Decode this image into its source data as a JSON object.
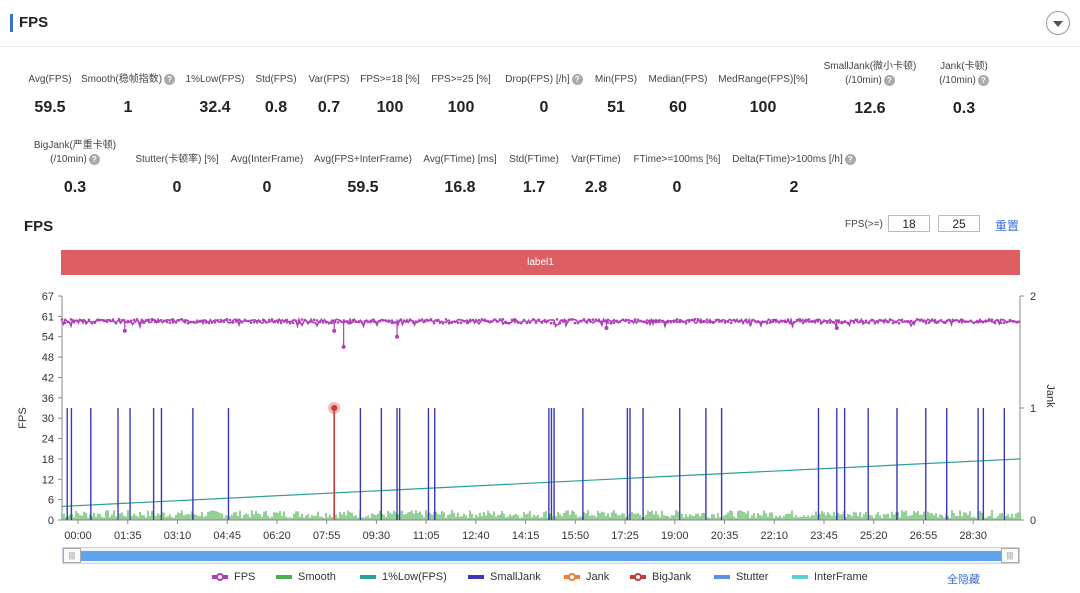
{
  "header": {
    "title": "FPS"
  },
  "metrics_row1": [
    {
      "label": "Avg(FPS)",
      "value": "59.5",
      "help": false
    },
    {
      "label": "Smooth(稳帧指数)",
      "value": "1",
      "help": true
    },
    {
      "label": "1%Low(FPS)",
      "value": "32.4",
      "help": false
    },
    {
      "label": "Std(FPS)",
      "value": "0.8",
      "help": false
    },
    {
      "label": "Var(FPS)",
      "value": "0.7",
      "help": false
    },
    {
      "label": "FPS>=18 [%]",
      "value": "100",
      "help": false
    },
    {
      "label": "FPS>=25 [%]",
      "value": "100",
      "help": false
    },
    {
      "label": "Drop(FPS) [/h]",
      "value": "0",
      "help": true
    },
    {
      "label": "Min(FPS)",
      "value": "51",
      "help": false
    },
    {
      "label": "Median(FPS)",
      "value": "60",
      "help": false
    },
    {
      "label": "MedRange(FPS)[%]",
      "value": "100",
      "help": false
    },
    {
      "label": "SmallJank(微小卡顿)",
      "label2": "(/10min)",
      "value": "12.6",
      "help": true
    },
    {
      "label": "Jank(卡顿)",
      "label2": "(/10min)",
      "value": "0.3",
      "help": true
    }
  ],
  "metrics_row2": [
    {
      "label": "BigJank(严重卡顿)",
      "label2": "(/10min)",
      "value": "0.3",
      "help": true
    },
    {
      "label": "Stutter(卡顿率) [%]",
      "value": "0",
      "help": false
    },
    {
      "label": "Avg(InterFrame)",
      "value": "0",
      "help": false
    },
    {
      "label": "Avg(FPS+InterFrame)",
      "value": "59.5",
      "help": false
    },
    {
      "label": "Avg(FTime) [ms]",
      "value": "16.8",
      "help": false
    },
    {
      "label": "Std(FTime)",
      "value": "1.7",
      "help": false
    },
    {
      "label": "Var(FTime)",
      "value": "2.8",
      "help": false
    },
    {
      "label": "FTime>=100ms [%]",
      "value": "0",
      "help": false
    },
    {
      "label": "Delta(FTime)>100ms [/h]",
      "value": "2",
      "help": true
    }
  ],
  "chart_panel": {
    "title": "FPS",
    "fps_filter_label": "FPS(>=)",
    "fps_threshold_1": "18",
    "fps_threshold_2": "25",
    "reset_label": "重置",
    "band_label": "label1",
    "hide_all_label": "全隐藏"
  },
  "chart_data": {
    "type": "line",
    "y_left_label": "FPS",
    "y_right_label": "Jank",
    "y_left_ticks": [
      0,
      6,
      12,
      18,
      24,
      30,
      36,
      42,
      48,
      54,
      61,
      67
    ],
    "y_right_ticks": [
      0,
      1,
      2
    ],
    "x_ticks": [
      "00:00",
      "01:35",
      "03:10",
      "04:45",
      "06:20",
      "07:55",
      "09:30",
      "11:05",
      "12:40",
      "14:15",
      "15:50",
      "17:25",
      "19:00",
      "20:35",
      "22:10",
      "23:45",
      "25:20",
      "26:55",
      "28:30"
    ],
    "x_range_seconds": [
      0,
      1830
    ],
    "legend": [
      "FPS",
      "Smooth",
      "1%Low(FPS)",
      "SmallJank",
      "Jank",
      "BigJank",
      "Stutter",
      "InterFrame"
    ],
    "colors": {
      "FPS": "#b040b8",
      "Smooth": "#4caf50",
      "1%Low(FPS)": "#2a9d9a",
      "SmallJank": "#3a3ab8",
      "Jank": "#e8803a",
      "BigJank": "#c83a3a",
      "Stutter": "#5b8fe8",
      "InterFrame": "#5fd0d0"
    },
    "fps": {
      "typical": 60,
      "min": 51,
      "max": 61
    },
    "fps_dips": [
      {
        "t": 120,
        "fps": 56
      },
      {
        "t": 520,
        "fps": 56
      },
      {
        "t": 538,
        "fps": 51
      },
      {
        "t": 640,
        "fps": 54
      },
      {
        "t": 1040,
        "fps": 57
      },
      {
        "t": 1480,
        "fps": 57
      }
    ],
    "low1_start": 4,
    "low1_end": 18,
    "small_jank_times": [
      10,
      18,
      55,
      107,
      130,
      175,
      190,
      250,
      318,
      520,
      570,
      610,
      640,
      645,
      700,
      712,
      930,
      935,
      940,
      995,
      1080,
      1085,
      1110,
      1180,
      1230,
      1260,
      1445,
      1480,
      1495,
      1540,
      1595,
      1650,
      1690,
      1750,
      1760,
      1800
    ],
    "big_jank_times": [
      520
    ]
  }
}
